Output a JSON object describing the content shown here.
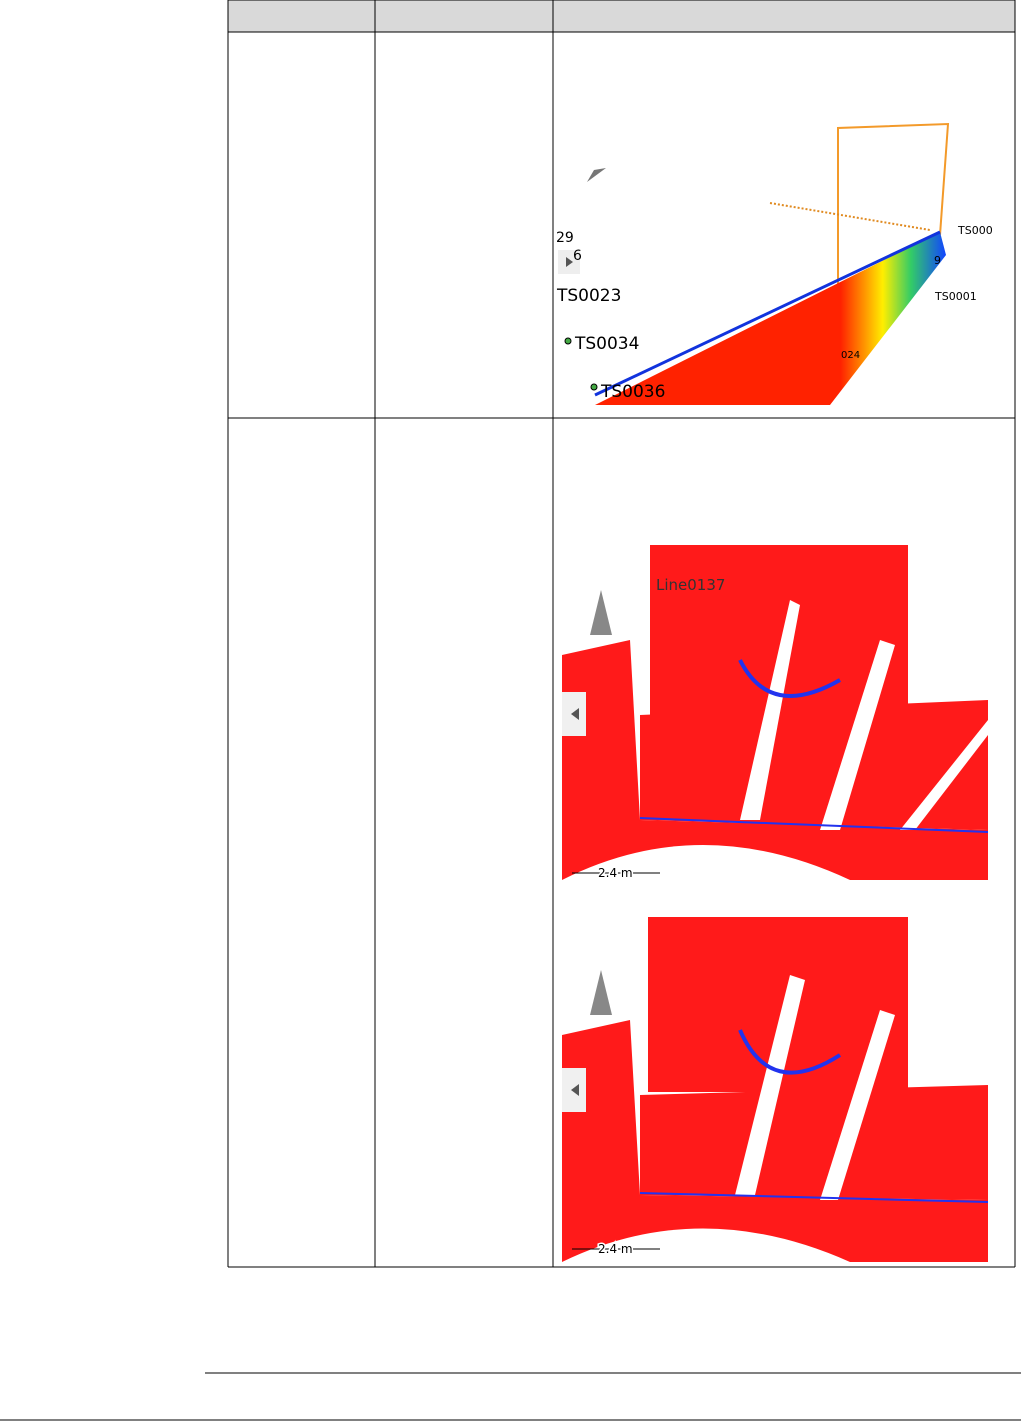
{
  "figures": [
    {
      "labels": [
        "29",
        "6",
        "TS0023",
        "TS0034",
        "TS0036",
        "TS000",
        "TS0001",
        "9",
        "024"
      ]
    },
    {
      "labels": [
        "Line0137"
      ],
      "scale": "2.4 m"
    },
    {
      "scale": "2.4 m"
    }
  ]
}
